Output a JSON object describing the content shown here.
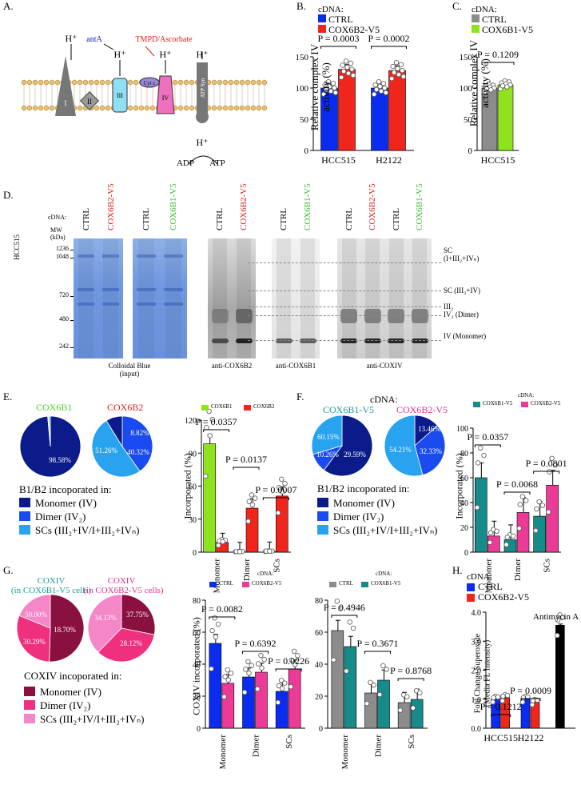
{
  "panels": {
    "A": "A.",
    "B": "B.",
    "C": "C.",
    "D": "D.",
    "E": "E.",
    "F": "F.",
    "G": "G.",
    "H": "H."
  },
  "colors": {
    "blue": "#0a2cf0",
    "red": "#f0251c",
    "gray": "#8c8c8c",
    "green": "#8fe31e",
    "navy": "#0b1c8a",
    "mid_blue": "#1a4bf0",
    "light_blue": "#28a3f0",
    "teal": "#178a8a",
    "pink": "#ec3a97",
    "maroon": "#8a1040",
    "hot_pink": "#f0307f",
    "light_pink": "#f586c8",
    "black": "#000000"
  },
  "panel_a": {
    "ant_a": "antA",
    "tmpd": "TMPD/Ascorbate",
    "hplus": "H⁺",
    "complexes": [
      "I",
      "II",
      "III",
      "IV",
      "ATP Syn"
    ],
    "cytc": "Cyt c",
    "adp": "ADP",
    "atp": "ATP"
  },
  "panel_b": {
    "legend_title": "cDNA:",
    "legend": [
      "CTRL",
      "COX6B2-V5"
    ],
    "ylabel": "Relative complex IV activity (%)",
    "categories": [
      "HCC515",
      "H2122"
    ],
    "pvalues": [
      "P = 0.0003",
      "P = 0.0002"
    ],
    "yticks": [
      "0",
      "50",
      "100",
      "150"
    ]
  },
  "panel_c": {
    "legend_title": "cDNA:",
    "legend": [
      "CTRL",
      "COX6B1-V5"
    ],
    "ylabel": "Relative complex IV activity (%)",
    "category": "HCC515",
    "pvalue": "P = 0.1209",
    "yticks": [
      "0",
      "50",
      "100",
      "150"
    ]
  },
  "panel_d": {
    "cdna_label": "cDNA:",
    "mw_label": "MW (kDa)",
    "cell_line": "HCC515",
    "mw": [
      "1236",
      "1048",
      "720",
      "480",
      "242"
    ],
    "lanes": [
      "CTRL",
      "COX6B2-V5",
      "CTRL",
      "COX6B1-V5",
      "CTRL",
      "COX6B2-V5",
      "CTRL",
      "COX6B1-V5",
      "CTRL",
      "COX6B2-V5",
      "CTRL",
      "COX6B1-V5"
    ],
    "captions": [
      "Colloidal Blue",
      "(input)",
      "anti-COX6B2",
      "anti-COX6B1",
      "anti-COXIV"
    ],
    "bands": [
      "SC",
      "(I+III₂+IVₙ)",
      "SC (III₂+IV)",
      "III₂",
      "IV₂ (Dimer)",
      "IV (Monomer)"
    ]
  },
  "panel_e": {
    "pie1_title": "COX6B1",
    "pie2_title": "COX6B2",
    "pie1_labels": [
      "98.58%"
    ],
    "pie2_labels": [
      "8.82%",
      "40.32%",
      "51.26%"
    ],
    "key_title": "B1/B2 incoporated in:",
    "key": [
      "Monomer (IV)",
      "Dimer (IV₂)",
      "SCs (III₂+IV/I+III₂+IVₙ)"
    ],
    "chart_legend": [
      "COX6B1",
      "COX6B2"
    ],
    "ylabel": "Incorporated (%)",
    "categories": [
      "Monomer",
      "Dimer",
      "SCs"
    ],
    "pvalues": [
      "P = 0.0357",
      "P = 0.0137",
      "P = 0.0007"
    ],
    "yticks": [
      "0",
      "30",
      "60",
      "90",
      "120"
    ]
  },
  "panel_f": {
    "cdna": "cDNA:",
    "pie1_title": "COX6B1-V5",
    "pie2_title": "COX6B2-V5",
    "pie1_labels": [
      "29.59%",
      "10.26%",
      "60.15%"
    ],
    "pie2_labels": [
      "13.46%",
      "32.33%",
      "54.21%"
    ],
    "key_title": "B1/B2 incoporated in:",
    "key": [
      "Monomer (IV)",
      "Dimer (IV₂)",
      "SCs (III₂+IV/I+III₂+IVₙ)"
    ],
    "chart_cdna": "cDNA:",
    "chart_legend": [
      "COX6B1-V5",
      "COX6B2-V5"
    ],
    "ylabel": "Incorporated (%)",
    "categories": [
      "Monomer",
      "Dimer",
      "SCs"
    ],
    "pvalues": [
      "P = 0.0357",
      "P = 0.0068",
      "P = 0.0801"
    ],
    "yticks": [
      "0",
      "20",
      "40",
      "60",
      "80",
      "100"
    ]
  },
  "panel_g": {
    "pie1_title": "COXIV",
    "pie1_sub": "(in COX6B1-V5 cells)",
    "pie2_title": "COXIV",
    "pie2_sub": "(in COX6B2-V5 cells)",
    "pie1_labels": [
      "18.70%",
      "30.29%",
      "50.00%"
    ],
    "pie2_labels": [
      "37.75%",
      "28.12%",
      "34.13%"
    ],
    "key_title": "COXIV incoporated in:",
    "key": [
      "Monomer (IV)",
      "Dimer (IV₂)",
      "SCs (III₂+IV/I+III₂+IVₙ)"
    ],
    "c1_cdna": "cDNA:",
    "c1_legend": [
      "CTRL",
      "COX6B2-V5"
    ],
    "c1_ylabel": "COXIV incorporated (%)",
    "c1_pvalues": [
      "P = 0.0082",
      "P = 0.6392",
      "P = 0.0226"
    ],
    "c2_cdna": "cDNA:",
    "c2_legend": [
      "CTRL",
      "COX6B1-V5"
    ],
    "c2_pvalues": [
      "P = 0.4946",
      "P = 0.3671",
      "P = 0.8768"
    ],
    "categories": [
      "Monomer",
      "Dimer",
      "SCs"
    ],
    "yticks": [
      "0",
      "20",
      "40",
      "60",
      "80"
    ]
  },
  "panel_h": {
    "legend_title": "cDNA:",
    "legend": [
      "CTRL",
      "COX6B2-V5"
    ],
    "ylabel": "Fold Change Superoxide",
    "ylabel2": "(Media FL Intensity)",
    "categories": [
      "HCC515",
      "H2122"
    ],
    "pvalues": [
      "P = 0.1212",
      "P = 0.0009"
    ],
    "antimycin": "Antimycin A",
    "yticks": [
      "0.0",
      "1.0",
      "2.0",
      "3.0",
      "4.0"
    ]
  },
  "chart_data": [
    {
      "type": "bar",
      "id": "B",
      "categories": [
        "HCC515",
        "H2122"
      ],
      "ylim": [
        0,
        150
      ],
      "series": [
        {
          "name": "CTRL",
          "values": [
            100,
            100
          ]
        },
        {
          "name": "COX6B2-V5",
          "values": [
            130,
            128
          ]
        }
      ]
    },
    {
      "type": "bar",
      "id": "C",
      "categories": [
        "HCC515"
      ],
      "ylim": [
        0,
        150
      ],
      "series": [
        {
          "name": "CTRL",
          "values": [
            100
          ]
        },
        {
          "name": "COX6B1-V5",
          "values": [
            105
          ]
        }
      ]
    },
    {
      "type": "pie",
      "id": "E-COX6B1",
      "values": [
        98.58,
        0.6,
        0.82
      ]
    },
    {
      "type": "pie",
      "id": "E-COX6B2",
      "values": [
        40.32,
        51.26,
        8.82
      ]
    },
    {
      "type": "bar",
      "id": "E",
      "categories": [
        "Monomer",
        "Dimer",
        "SCs"
      ],
      "ylim": [
        0,
        120
      ],
      "series": [
        {
          "name": "COX6B1",
          "values": [
            98.5,
            0.5,
            0.8
          ]
        },
        {
          "name": "COX6B2",
          "values": [
            8.8,
            40,
            51
          ]
        }
      ]
    },
    {
      "type": "pie",
      "id": "F-COX6B1-V5",
      "values": [
        60.15,
        10.26,
        29.59
      ]
    },
    {
      "type": "pie",
      "id": "F-COX6B2-V5",
      "values": [
        13.46,
        32.33,
        54.21
      ]
    },
    {
      "type": "bar",
      "id": "F",
      "categories": [
        "Monomer",
        "Dimer",
        "SCs"
      ],
      "ylim": [
        0,
        100
      ],
      "series": [
        {
          "name": "COX6B1-V5",
          "values": [
            60,
            10,
            29
          ]
        },
        {
          "name": "COX6B2-V5",
          "values": [
            13,
            32,
            54
          ]
        }
      ]
    },
    {
      "type": "pie",
      "id": "G-COX6B1-V5",
      "values": [
        50.0,
        30.29,
        18.7
      ]
    },
    {
      "type": "pie",
      "id": "G-COX6B2-V5",
      "values": [
        28.12,
        34.13,
        37.75
      ]
    },
    {
      "type": "bar",
      "id": "G1",
      "categories": [
        "Monomer",
        "Dimer",
        "SCs"
      ],
      "ylim": [
        0,
        80
      ],
      "series": [
        {
          "name": "CTRL",
          "values": [
            53,
            32,
            23
          ]
        },
        {
          "name": "COX6B2-V5",
          "values": [
            28,
            35,
            37
          ]
        }
      ]
    },
    {
      "type": "bar",
      "id": "G2",
      "categories": [
        "Monomer",
        "Dimer",
        "SCs"
      ],
      "ylim": [
        0,
        80
      ],
      "series": [
        {
          "name": "CTRL",
          "values": [
            61,
            22,
            16
          ]
        },
        {
          "name": "COX6B1-V5",
          "values": [
            51,
            30,
            18
          ]
        }
      ]
    },
    {
      "type": "bar",
      "id": "H",
      "categories": [
        "HCC515",
        "H2122",
        ""
      ],
      "ylim": [
        0,
        4
      ],
      "series": [
        {
          "name": "CTRL",
          "values": [
            1.0,
            1.0,
            null
          ]
        },
        {
          "name": "COX6B2-V5",
          "values": [
            1.05,
            0.9,
            null
          ]
        },
        {
          "name": "Antimycin A",
          "values": [
            null,
            null,
            3.55
          ]
        }
      ]
    }
  ]
}
